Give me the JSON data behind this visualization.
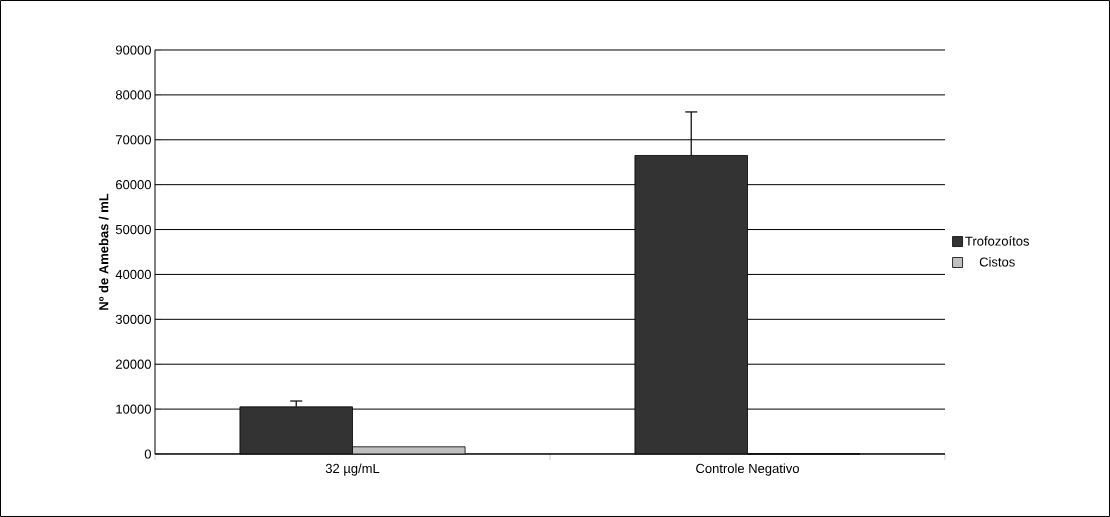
{
  "chart_data": {
    "type": "bar",
    "ylabel": "Nº de Amebas / mL",
    "categories": [
      "32 µg/mL",
      "Controle Negativo"
    ],
    "series": [
      {
        "name": "Trofozoítos",
        "color": "#333333",
        "values": [
          10500,
          66500
        ],
        "errors": [
          1300,
          9700
        ]
      },
      {
        "name": "Cistos",
        "color": "#c0c0c0",
        "values": [
          1600,
          0
        ]
      }
    ],
    "ylim": [
      0,
      90000
    ],
    "yticks": [
      0,
      10000,
      20000,
      30000,
      40000,
      50000,
      60000,
      70000,
      80000,
      90000
    ],
    "grid": "y",
    "legend": "right"
  }
}
